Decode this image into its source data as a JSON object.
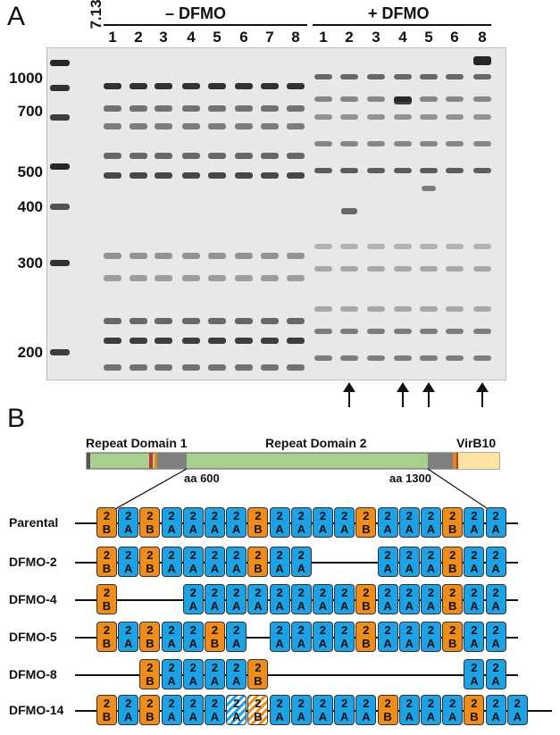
{
  "panel_a": {
    "letter": "A",
    "lane_first": "7.13",
    "minus_label": "– DFMO",
    "plus_label": "+ DFMO",
    "minus_lanes": [
      "1",
      "2",
      "3",
      "4",
      "5",
      "6",
      "7",
      "8"
    ],
    "plus_lanes": [
      "1",
      "2",
      "3",
      "4",
      "5",
      "6",
      "8"
    ],
    "size_labels": [
      "1000",
      "700",
      "500",
      "400",
      "300",
      "200"
    ],
    "arrow_lanes": [
      "2",
      "4",
      "5",
      "8"
    ]
  },
  "panel_b": {
    "letter": "B",
    "domain1": "Repeat Domain 1",
    "domain2": "Repeat Domain 2",
    "virb10": "VirB10",
    "aa600": "aa 600",
    "aa1300": "aa 1300",
    "colors": {
      "repeat_a": "#1ea2e6",
      "repeat_b": "#f08c1a",
      "domain_green": "#a9d08e",
      "gray": "#808080",
      "virb10": "#fde3a2"
    },
    "rows": [
      {
        "label": "Parental",
        "boxes": [
          "2B",
          "2A",
          "2B",
          "2A",
          "2A",
          "2A",
          "2A",
          "2B",
          "2A",
          "2A",
          "2A",
          "2A",
          "2B",
          "2A",
          "2A",
          "2A",
          "2B",
          "2A",
          "2A"
        ]
      },
      {
        "label": "DFMO-2",
        "boxes": [
          "2B",
          "2A",
          "2B",
          "2A",
          "2A",
          "2A",
          "2A",
          "2B",
          "2A",
          "2A",
          "gap",
          "gap",
          "gap",
          "2A",
          "2A",
          "2A",
          "2B",
          "2A",
          "2A"
        ]
      },
      {
        "label": "DFMO-4",
        "boxes": [
          "2B",
          "gap",
          "gap",
          "gap",
          "2A",
          "2A",
          "2A",
          "2A",
          "2A",
          "2A",
          "2A",
          "2A",
          "2B",
          "2A",
          "2A",
          "2A",
          "2B",
          "2A",
          "2A"
        ]
      },
      {
        "label": "DFMO-5",
        "boxes": [
          "2B",
          "2A",
          "2B",
          "2A",
          "2A",
          "2B",
          "2A",
          "gap",
          "2A",
          "2A",
          "2A",
          "2A",
          "2B",
          "2A",
          "2A",
          "2A",
          "2B",
          "2A",
          "2A"
        ]
      },
      {
        "label": "DFMO-8",
        "boxes": [
          "gap",
          "gap",
          "2B",
          "2A",
          "2A",
          "2A",
          "2A",
          "2B",
          "gap",
          "gap",
          "gap",
          "gap",
          "gap",
          "gap",
          "gap",
          "gap",
          "gap",
          "2A",
          "2A"
        ]
      },
      {
        "label": "DFMO-14",
        "boxes": [
          "2B",
          "2A",
          "2B",
          "2A",
          "2A",
          "2A",
          "2Ah",
          "2Bh",
          "2A",
          "2A",
          "2A",
          "2A",
          "2A",
          "2B",
          "2A",
          "2A",
          "2A",
          "2B",
          "2A",
          "2A"
        ]
      }
    ]
  }
}
